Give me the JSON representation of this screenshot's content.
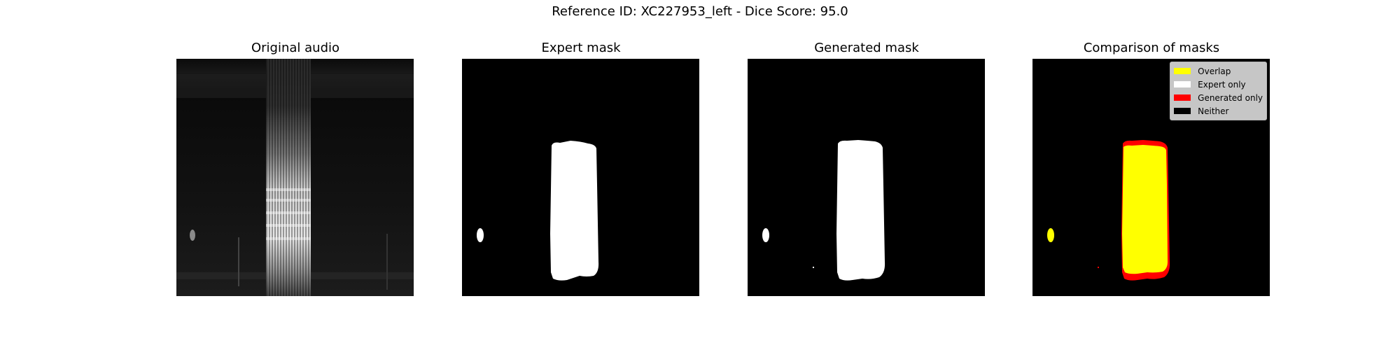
{
  "figure": {
    "suptitle": "Reference ID: XC227953_left - Dice Score: 95.0"
  },
  "panels": [
    {
      "title": "Original audio"
    },
    {
      "title": "Expert mask"
    },
    {
      "title": "Generated mask"
    },
    {
      "title": "Comparison of masks"
    }
  ],
  "legend": {
    "entries": [
      {
        "label": "Overlap",
        "color": "#ffff00"
      },
      {
        "label": "Expert only",
        "color": "#ffffff"
      },
      {
        "label": "Generated only",
        "color": "#ff0000"
      },
      {
        "label": "Neither",
        "color": "#000000"
      }
    ]
  },
  "colors": {
    "mask_fg": "#ffffff",
    "mask_bg": "#000000",
    "overlap": "#ffff00",
    "generated_only": "#ff0000"
  }
}
